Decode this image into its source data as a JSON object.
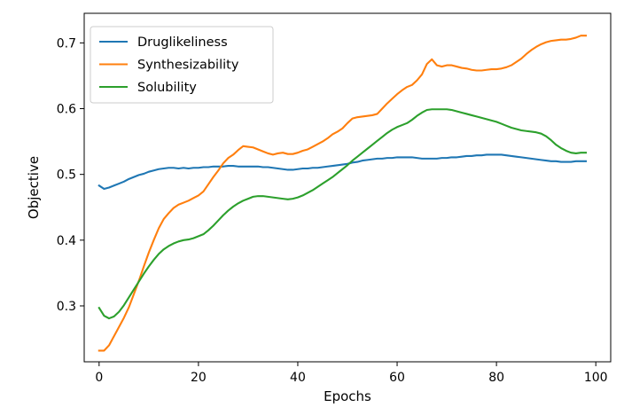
{
  "chart_data": {
    "type": "line",
    "title": "",
    "xlabel": "Epochs",
    "ylabel": "Objective",
    "xlim": [
      -3,
      103
    ],
    "ylim": [
      0.215,
      0.745
    ],
    "xticks": [
      0,
      20,
      40,
      60,
      80,
      100
    ],
    "yticks": [
      0.3,
      0.4,
      0.5,
      0.6,
      0.7
    ],
    "xtick_labels": [
      "0",
      "20",
      "40",
      "60",
      "80",
      "100"
    ],
    "ytick_labels": [
      "0.3",
      "0.4",
      "0.5",
      "0.6",
      "0.7"
    ],
    "grid": false,
    "legend_position": "top-left",
    "x": [
      0,
      1,
      2,
      3,
      4,
      5,
      6,
      7,
      8,
      9,
      10,
      11,
      12,
      13,
      14,
      15,
      16,
      17,
      18,
      19,
      20,
      21,
      22,
      23,
      24,
      25,
      26,
      27,
      28,
      29,
      30,
      31,
      32,
      33,
      34,
      35,
      36,
      37,
      38,
      39,
      40,
      41,
      42,
      43,
      44,
      45,
      46,
      47,
      48,
      49,
      50,
      51,
      52,
      53,
      54,
      55,
      56,
      57,
      58,
      59,
      60,
      61,
      62,
      63,
      64,
      65,
      66,
      67,
      68,
      69,
      70,
      71,
      72,
      73,
      74,
      75,
      76,
      77,
      78,
      79,
      80,
      81,
      82,
      83,
      84,
      85,
      86,
      87,
      88,
      89,
      90,
      91,
      92,
      93,
      94,
      95,
      96,
      97,
      98
    ],
    "series": [
      {
        "name": "Druglikeliness",
        "color": "#1f77b4",
        "values": [
          0.483,
          0.478,
          0.48,
          0.483,
          0.486,
          0.489,
          0.493,
          0.496,
          0.499,
          0.501,
          0.504,
          0.506,
          0.508,
          0.509,
          0.51,
          0.51,
          0.509,
          0.51,
          0.509,
          0.51,
          0.51,
          0.511,
          0.511,
          0.512,
          0.512,
          0.512,
          0.513,
          0.513,
          0.512,
          0.512,
          0.512,
          0.512,
          0.512,
          0.511,
          0.511,
          0.51,
          0.509,
          0.508,
          0.507,
          0.507,
          0.508,
          0.509,
          0.509,
          0.51,
          0.51,
          0.511,
          0.512,
          0.513,
          0.514,
          0.515,
          0.516,
          0.518,
          0.519,
          0.521,
          0.522,
          0.523,
          0.524,
          0.524,
          0.525,
          0.525,
          0.526,
          0.526,
          0.526,
          0.526,
          0.525,
          0.524,
          0.524,
          0.524,
          0.524,
          0.525,
          0.525,
          0.526,
          0.526,
          0.527,
          0.528,
          0.528,
          0.529,
          0.529,
          0.53,
          0.53,
          0.53,
          0.53,
          0.529,
          0.528,
          0.527,
          0.526,
          0.525,
          0.524,
          0.523,
          0.522,
          0.521,
          0.52,
          0.52,
          0.519,
          0.519,
          0.519,
          0.52,
          0.52,
          0.52
        ]
      },
      {
        "name": "Synthesizability",
        "color": "#ff7f0e",
        "values": [
          0.232,
          0.232,
          0.24,
          0.254,
          0.268,
          0.282,
          0.298,
          0.318,
          0.338,
          0.36,
          0.381,
          0.4,
          0.418,
          0.432,
          0.441,
          0.449,
          0.454,
          0.457,
          0.46,
          0.464,
          0.468,
          0.474,
          0.485,
          0.496,
          0.506,
          0.517,
          0.525,
          0.53,
          0.537,
          0.543,
          0.542,
          0.541,
          0.538,
          0.535,
          0.532,
          0.53,
          0.532,
          0.533,
          0.531,
          0.531,
          0.533,
          0.536,
          0.538,
          0.542,
          0.546,
          0.55,
          0.555,
          0.561,
          0.565,
          0.57,
          0.578,
          0.585,
          0.587,
          0.588,
          0.589,
          0.59,
          0.592,
          0.6,
          0.608,
          0.615,
          0.622,
          0.628,
          0.633,
          0.636,
          0.643,
          0.652,
          0.668,
          0.675,
          0.666,
          0.664,
          0.666,
          0.666,
          0.664,
          0.662,
          0.661,
          0.659,
          0.658,
          0.658,
          0.659,
          0.66,
          0.66,
          0.661,
          0.663,
          0.666,
          0.671,
          0.676,
          0.683,
          0.689,
          0.694,
          0.698,
          0.701,
          0.703,
          0.704,
          0.705,
          0.705,
          0.706,
          0.708,
          0.711,
          0.711
        ]
      },
      {
        "name": "Solubility",
        "color": "#2ca02c",
        "values": [
          0.297,
          0.285,
          0.281,
          0.284,
          0.291,
          0.301,
          0.313,
          0.325,
          0.337,
          0.349,
          0.36,
          0.37,
          0.379,
          0.386,
          0.391,
          0.395,
          0.398,
          0.4,
          0.401,
          0.403,
          0.406,
          0.409,
          0.415,
          0.422,
          0.43,
          0.438,
          0.445,
          0.451,
          0.456,
          0.46,
          0.463,
          0.466,
          0.467,
          0.467,
          0.466,
          0.465,
          0.464,
          0.463,
          0.462,
          0.463,
          0.465,
          0.468,
          0.472,
          0.476,
          0.481,
          0.486,
          0.491,
          0.496,
          0.502,
          0.508,
          0.514,
          0.521,
          0.527,
          0.533,
          0.539,
          0.545,
          0.551,
          0.557,
          0.563,
          0.568,
          0.572,
          0.575,
          0.578,
          0.583,
          0.589,
          0.594,
          0.598,
          0.599,
          0.599,
          0.599,
          0.599,
          0.598,
          0.596,
          0.594,
          0.592,
          0.59,
          0.588,
          0.586,
          0.584,
          0.582,
          0.58,
          0.577,
          0.574,
          0.571,
          0.569,
          0.567,
          0.566,
          0.565,
          0.564,
          0.562,
          0.558,
          0.552,
          0.545,
          0.54,
          0.536,
          0.533,
          0.532,
          0.533,
          0.533
        ]
      }
    ]
  }
}
